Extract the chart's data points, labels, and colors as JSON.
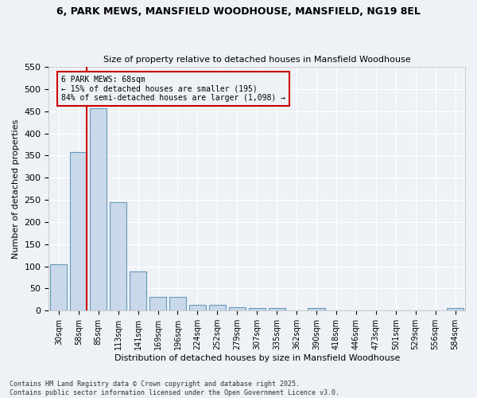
{
  "title_line1": "6, PARK MEWS, MANSFIELD WOODHOUSE, MANSFIELD, NG19 8EL",
  "title_line2": "Size of property relative to detached houses in Mansfield Woodhouse",
  "xlabel": "Distribution of detached houses by size in Mansfield Woodhouse",
  "ylabel": "Number of detached properties",
  "bar_labels": [
    "30sqm",
    "58sqm",
    "85sqm",
    "113sqm",
    "141sqm",
    "169sqm",
    "196sqm",
    "224sqm",
    "252sqm",
    "279sqm",
    "307sqm",
    "335sqm",
    "362sqm",
    "390sqm",
    "418sqm",
    "446sqm",
    "473sqm",
    "501sqm",
    "529sqm",
    "556sqm",
    "584sqm"
  ],
  "bar_values": [
    105,
    357,
    457,
    245,
    88,
    31,
    31,
    13,
    13,
    8,
    5,
    5,
    0,
    5,
    0,
    0,
    0,
    0,
    0,
    0,
    5
  ],
  "bar_color": "#c9d9ea",
  "bar_edge_color": "#6699bb",
  "vline_color": "#cc0000",
  "annotation_title": "6 PARK MEWS: 68sqm",
  "annotation_line1": "← 15% of detached houses are smaller (195)",
  "annotation_line2": "84% of semi-detached houses are larger (1,098) →",
  "annotation_box_color": "#cc0000",
  "ylim": [
    0,
    550
  ],
  "yticks": [
    0,
    50,
    100,
    150,
    200,
    250,
    300,
    350,
    400,
    450,
    500,
    550
  ],
  "footnote_line1": "Contains HM Land Registry data © Crown copyright and database right 2025.",
  "footnote_line2": "Contains public sector information licensed under the Open Government Licence v3.0.",
  "bg_color": "#eef2f7",
  "grid_color": "#ffffff"
}
